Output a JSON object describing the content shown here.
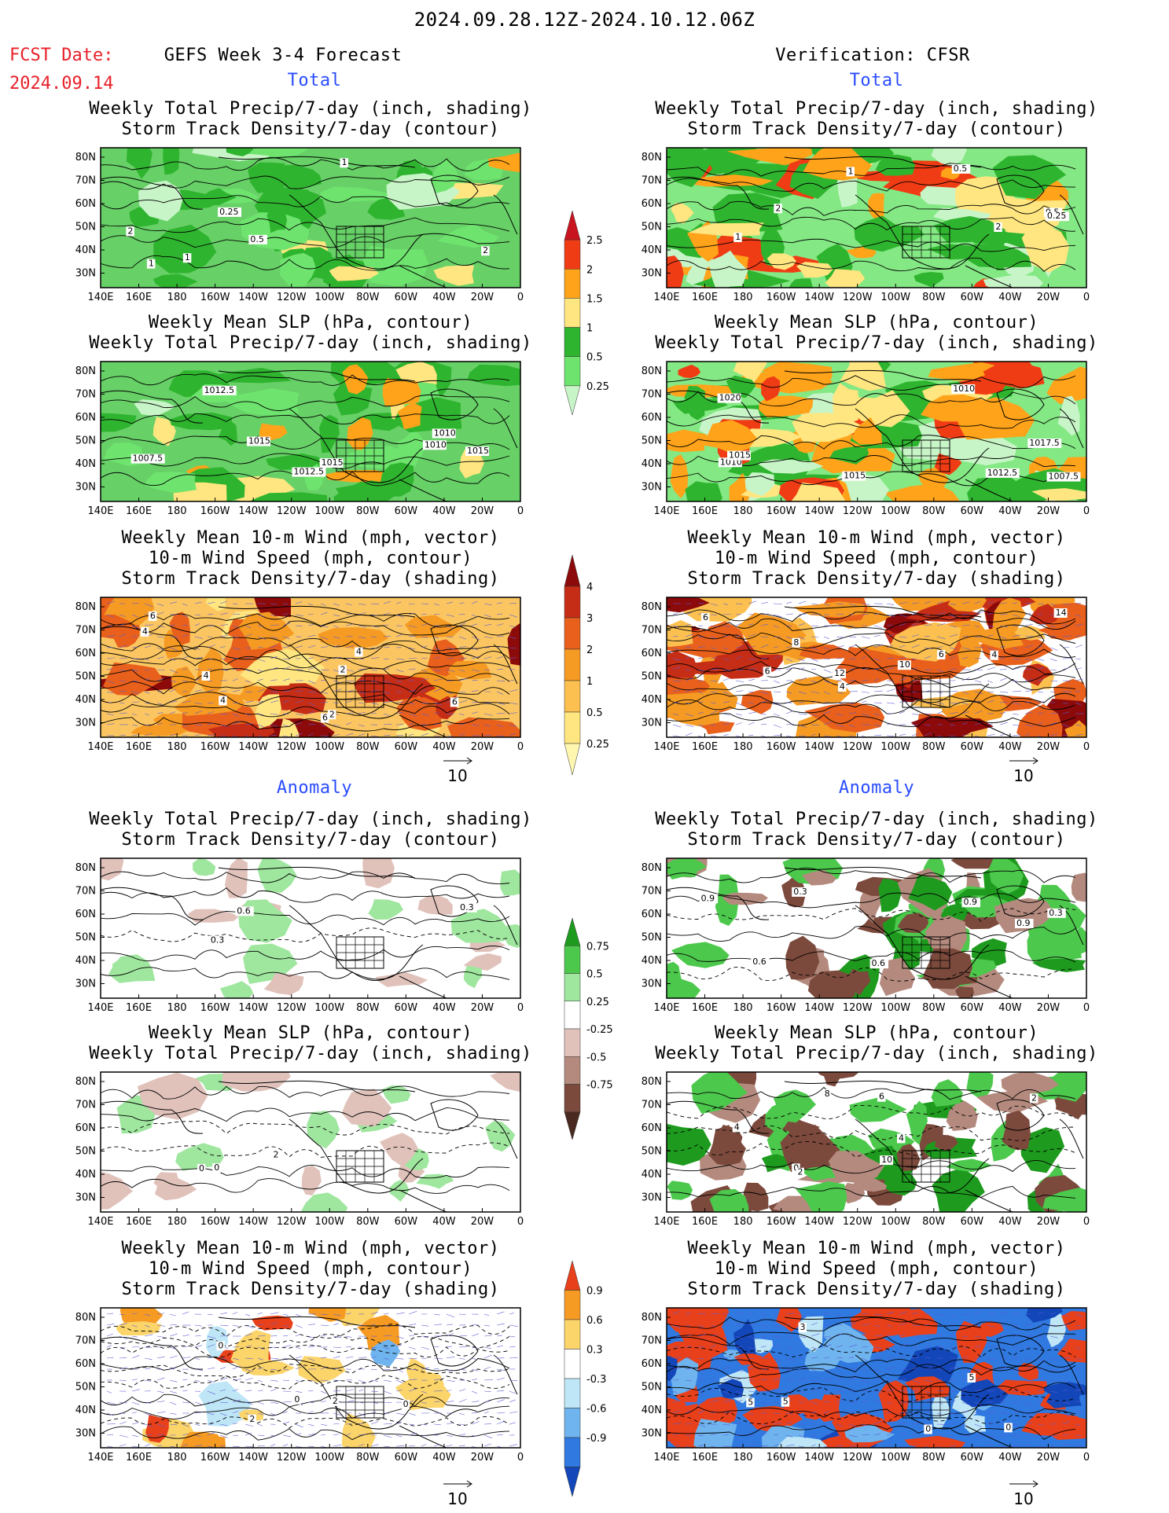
{
  "header": {
    "date_range": "2024.09.28.12Z-2024.10.12.06Z",
    "fcst_label": "FCST Date:",
    "fcst_date": "2024.09.14",
    "model_title": "GEFS Week 3-4 Forecast",
    "verification_title": "Verification: CFSR",
    "total_label": "Total",
    "anomaly_label": "Anomaly"
  },
  "panel_titles": {
    "precip_storm": [
      "Weekly Total Precip/7-day (inch, shading)",
      "Storm Track Density/7-day (contour)"
    ],
    "slp_precip": [
      "Weekly Mean SLP (hPa, contour)",
      "Weekly Total Precip/7-day (inch, shading)"
    ],
    "wind_storm": [
      "Weekly Mean 10-m Wind (mph, vector)",
      "10-m Wind Speed (mph, contour)",
      "Storm Track Density/7-day (shading)"
    ]
  },
  "axes": {
    "lon_ticks": [
      "140E",
      "160E",
      "180",
      "160W",
      "140W",
      "120W",
      "100W",
      "80W",
      "60W",
      "40W",
      "20W",
      "0"
    ],
    "lat_ticks": [
      "80N",
      "70N",
      "60N",
      "50N",
      "40N",
      "30N"
    ]
  },
  "vector_reference": "10",
  "colorbars": {
    "precip_total": {
      "levels": [
        "0.25",
        "0.5",
        "1",
        "1.5",
        "2",
        "2.5"
      ],
      "colors": [
        "#c8f5c8",
        "#6ee46e",
        "#2fb42f",
        "#ffe680",
        "#ffa31a",
        "#f03c14",
        "#c8141e"
      ]
    },
    "storm_total": {
      "levels": [
        "0.25",
        "0.5",
        "1",
        "2",
        "3",
        "4"
      ],
      "colors": [
        "#fff7b0",
        "#ffe680",
        "#fbc050",
        "#f59a23",
        "#e8601c",
        "#c62d16",
        "#8c0a0a"
      ]
    },
    "precip_anom": {
      "levels": [
        "0.75",
        "0.5",
        "0.25",
        "-0.25",
        "-0.5",
        "-0.75"
      ],
      "colors": [
        "#1e9b1e",
        "#4cc84c",
        "#9fe69f",
        "#ffffff",
        "#e0c2bb",
        "#b48a7e",
        "#7b4a3c",
        "#4a2a20"
      ]
    },
    "storm_anom": {
      "levels": [
        "0.9",
        "0.6",
        "0.3",
        "-0.3",
        "-0.6",
        "-0.9"
      ],
      "colors": [
        "#e8401a",
        "#f59a23",
        "#fbd46a",
        "#ffffff",
        "#bfe6f7",
        "#6fb4ee",
        "#2f79e0",
        "#1346b8"
      ]
    }
  },
  "contour_labels": {
    "r1l": [
      "1",
      "1",
      "2",
      "0.5",
      "0.25",
      "2",
      "1"
    ],
    "r1r": [
      "1",
      "0.5",
      "0.5",
      "0.25",
      "1",
      "2",
      "2"
    ],
    "r2l": [
      "1015",
      "1010",
      "1012.5",
      "1012.5",
      "1010",
      "1007.5",
      "1015",
      "1015"
    ],
    "r2r": [
      "1010",
      "1012.5",
      "1007.5",
      "1017.5",
      "1015",
      "1010",
      "1020",
      "1015"
    ],
    "r3l": [
      "4",
      "2",
      "6",
      "4",
      "4",
      "6",
      "6",
      "2",
      "4"
    ],
    "r3r": [
      "4",
      "6",
      "14",
      "12",
      "8",
      "6",
      "10",
      "4",
      "6"
    ],
    "r4l": [
      "0.3",
      "0.3",
      "0.6"
    ],
    "r4r": [
      "0.6",
      "0.3",
      "0.9",
      "0.6",
      "0.9",
      "0.3",
      "0.9"
    ],
    "r5l": [
      "2",
      "0",
      "0"
    ],
    "r5r": [
      "0",
      "2",
      "4",
      "2",
      "4",
      "6",
      "10",
      "8"
    ],
    "r6l": [
      "0",
      "2",
      "2",
      "0",
      "0"
    ],
    "r6r": [
      "5",
      "5",
      "0",
      "3",
      "0",
      "5"
    ]
  }
}
